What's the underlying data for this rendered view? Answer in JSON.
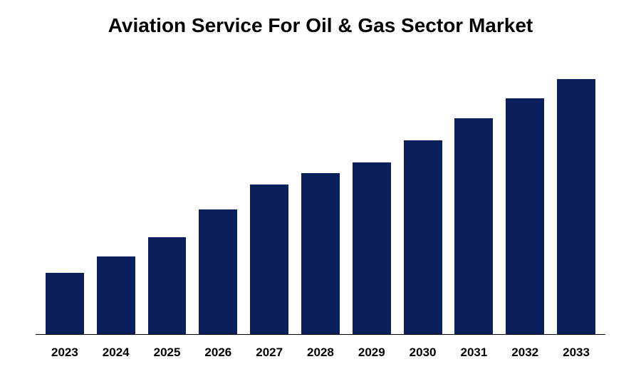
{
  "chart": {
    "type": "bar",
    "title": "Aviation Service For Oil & Gas Sector Market",
    "title_fontsize": 28,
    "title_color": "#000000",
    "categories": [
      "2023",
      "2024",
      "2025",
      "2026",
      "2027",
      "2028",
      "2029",
      "2030",
      "2031",
      "2032",
      "2033"
    ],
    "values": [
      22,
      28,
      35,
      45,
      54,
      58,
      62,
      70,
      78,
      85,
      92
    ],
    "ylim": [
      0,
      100
    ],
    "bar_color": "#0b1f5c",
    "bar_width_pct": 75,
    "background_color": "#ffffff",
    "axis_line_color": "#000000",
    "label_fontsize": 17,
    "label_fontweight": "bold",
    "label_color": "#000000"
  }
}
